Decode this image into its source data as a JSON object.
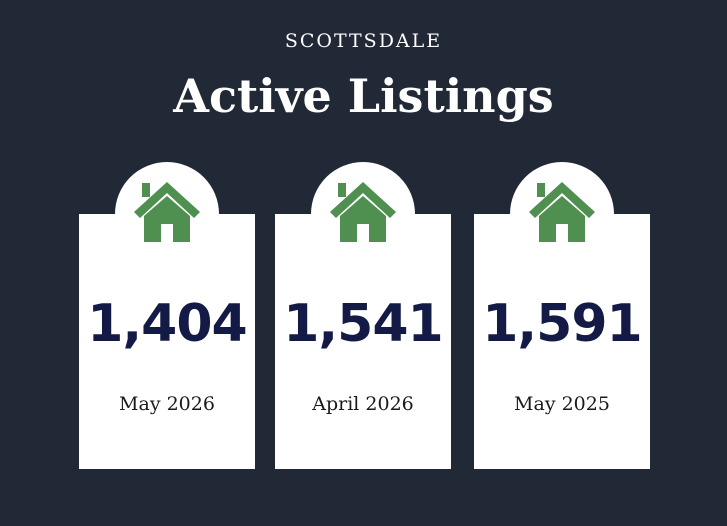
{
  "header": {
    "eyebrow": "SCOTTSDALE",
    "title": "Active Listings"
  },
  "cards": [
    {
      "icon": "house-icon",
      "value": "1,404",
      "period": "May 2026"
    },
    {
      "icon": "house-icon",
      "value": "1,541",
      "period": "April 2026"
    },
    {
      "icon": "house-icon",
      "value": "1,591",
      "period": "May 2025"
    }
  ],
  "colors": {
    "background": "#212836",
    "card": "#ffffff",
    "icon": "#4f8f4f",
    "value": "#121a45"
  }
}
